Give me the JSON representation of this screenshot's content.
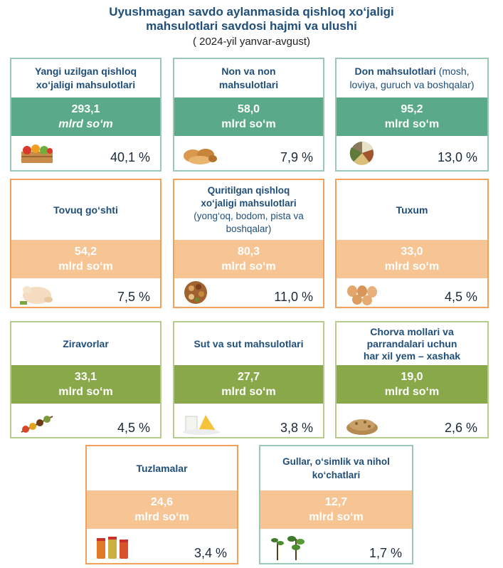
{
  "title": {
    "line1": "Uyushmagan savdo aylanmasida qishloq xo‘jaligi",
    "line2": "mahsulotlari savdosi hajmi va ulushi",
    "period": "( 2024-yil yanvar-avgust)"
  },
  "unit": "mlrd so‘m",
  "cards": [
    {
      "id": "fresh-produce",
      "name_lines": [
        "Yangi uzilgan qishloq",
        "xo‘jaligi mahsulotlari"
      ],
      "value": "293,1",
      "share": "40,1 %",
      "icon": "vegetable-crate-icon"
    },
    {
      "id": "bread",
      "name_lines": [
        "Non va non",
        "mahsulotlari"
      ],
      "value": "58,0",
      "share": "7,9 %",
      "icon": "bread-icon"
    },
    {
      "id": "grains",
      "name_bold": "Don mahsulotlari",
      "name_rest1": " (mosh,",
      "name_rest2": "loviya, guruch va boshqalar)",
      "value": "95,2",
      "share": "13,0 %",
      "icon": "grain-bowls-icon"
    },
    {
      "id": "chicken",
      "name_lines": [
        "Tovuq go‘shti"
      ],
      "value": "54,2",
      "share": "7,5 %",
      "icon": "chicken-icon"
    },
    {
      "id": "dried",
      "name_lines": [
        "Quritilgan qishloq",
        "xo‘jaligi mahsulotlari"
      ],
      "name_sub_lines": [
        "(yong‘oq, bodom, pista va",
        "boshqalar)"
      ],
      "value": "80,3",
      "share": "11,0 %",
      "icon": "nuts-icon"
    },
    {
      "id": "eggs",
      "name_lines": [
        "Tuxum"
      ],
      "value": "33,0",
      "share": "4,5 %",
      "icon": "eggs-icon"
    },
    {
      "id": "spices",
      "name_lines": [
        "Ziravorlar"
      ],
      "value": "33,1",
      "share": "4,5 %",
      "icon": "spices-icon"
    },
    {
      "id": "dairy",
      "name_lines": [
        "Sut va sut mahsulotlari"
      ],
      "value": "27,7",
      "share": "3,8 %",
      "icon": "dairy-icon"
    },
    {
      "id": "feed",
      "name_lines": [
        "Chorva mollari va",
        "parrandalari uchun",
        "har xil yem – xashak"
      ],
      "value": "19,0",
      "share": "2,6 %",
      "icon": "feed-pellets-icon"
    },
    {
      "id": "pickles",
      "name_lines": [
        "Tuzlamalar"
      ],
      "value": "24,6",
      "share": "3,4 %",
      "icon": "pickle-jars-icon"
    },
    {
      "id": "plants",
      "name_lines": [
        "Gullar, o‘simlik va nihol",
        "ko‘chatlari"
      ],
      "value": "12,7",
      "share": "1,7 %",
      "icon": "seedlings-icon"
    }
  ],
  "colors": {
    "title": "#1f4e79",
    "teal": "#5aa98b",
    "peach": "#f7c593",
    "olive": "#89a84a"
  }
}
